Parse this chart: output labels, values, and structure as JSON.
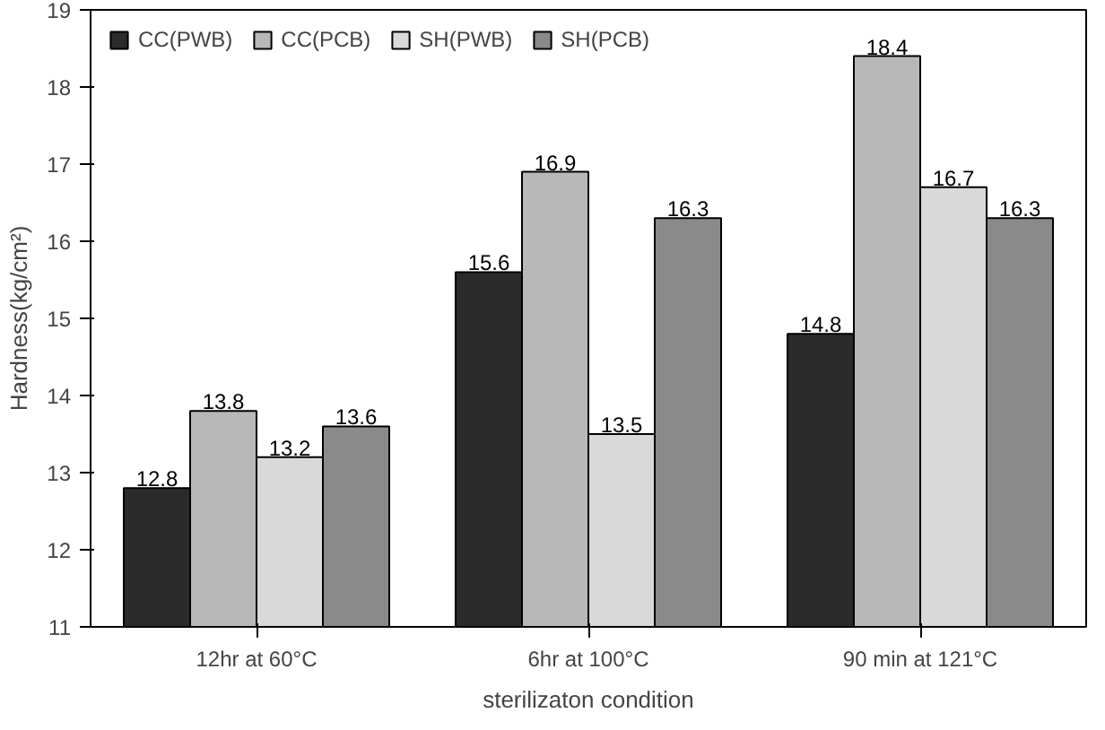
{
  "chart_data": {
    "type": "bar",
    "xlabel": "sterilizaton condition",
    "ylabel": "Hardness(kg/cm²)",
    "categories": [
      "12hr at 60°C",
      "6hr at 100°C",
      "90 min at 121°C"
    ],
    "series": [
      {
        "name": "CC(PWB)",
        "color": "#2b2b2b",
        "values": [
          12.8,
          15.6,
          14.8
        ]
      },
      {
        "name": "CC(PCB)",
        "color": "#b8b8b8",
        "values": [
          13.8,
          16.9,
          18.4
        ]
      },
      {
        "name": "SH(PWB)",
        "color": "#d9d9d9",
        "values": [
          13.2,
          13.5,
          16.7
        ]
      },
      {
        "name": "SH(PCB)",
        "color": "#8a8a8a",
        "values": [
          13.6,
          16.3,
          16.3
        ]
      }
    ],
    "ylim": [
      11,
      19
    ],
    "yticks": [
      11,
      12,
      13,
      14,
      15,
      16,
      17,
      18,
      19
    ],
    "grid": false,
    "legend": "top left",
    "data_labels": true
  }
}
